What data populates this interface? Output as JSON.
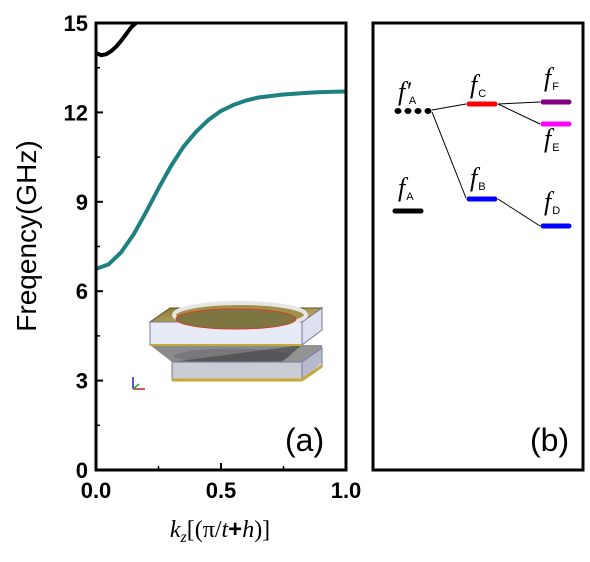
{
  "chart_data": [
    {
      "panel_label": "(a)",
      "type": "line",
      "xlabel": {
        "var": "k",
        "sub": "z",
        "rest1": "[(π/",
        "t": "t",
        "plus": "+",
        "h": "h",
        "rest2": ")]"
      },
      "ylabel": "Freqency(GHz)",
      "xlim": [
        0,
        1.0
      ],
      "ylim": [
        0,
        15
      ],
      "x_ticks": [
        "0.0",
        "0.5",
        "1.0"
      ],
      "y_ticks": [
        "0",
        "3",
        "6",
        "9",
        "12",
        "15"
      ],
      "grid": false,
      "series": [
        {
          "color": "#1f8080",
          "x": [
            0.0,
            0.05,
            0.1,
            0.15,
            0.2,
            0.25,
            0.3,
            0.35,
            0.4,
            0.45,
            0.5,
            0.55,
            0.6,
            0.65,
            0.7,
            0.75,
            0.8,
            0.85,
            0.9,
            0.95,
            1.0
          ],
          "y": [
            6.75,
            6.9,
            7.3,
            7.9,
            8.65,
            9.45,
            10.2,
            10.85,
            11.35,
            11.75,
            12.05,
            12.25,
            12.4,
            12.5,
            12.55,
            12.6,
            12.63,
            12.66,
            12.68,
            12.69,
            12.7
          ]
        },
        {
          "color": "#000000",
          "x": [
            0.0,
            0.02,
            0.04,
            0.06,
            0.08,
            0.1,
            0.12,
            0.14,
            0.16
          ],
          "y": [
            14.0,
            13.92,
            13.95,
            14.05,
            14.2,
            14.4,
            14.62,
            14.85,
            15.0
          ]
        }
      ]
    },
    {
      "panel_label": "(b)",
      "type": "level-diagram",
      "levels": [
        {
          "name": "f′A",
          "label": "f′",
          "sub": "A",
          "color": "#000000",
          "dashed": true
        },
        {
          "name": "fA",
          "label": "f",
          "sub": "A",
          "color": "#000000",
          "dashed": false
        },
        {
          "name": "fC",
          "label": "f",
          "sub": "C",
          "color": "#ff0000",
          "dashed": false
        },
        {
          "name": "fB",
          "label": "f",
          "sub": "B",
          "color": "#0000ff",
          "dashed": false
        },
        {
          "name": "fF",
          "label": "f",
          "sub": "F",
          "color": "#800080",
          "dashed": false
        },
        {
          "name": "fE",
          "label": "f",
          "sub": "E",
          "color": "#ff00ff",
          "dashed": false
        },
        {
          "name": "fD",
          "label": "f",
          "sub": "D",
          "color": "#0000ff",
          "dashed": false
        }
      ],
      "connections": [
        [
          "f′A",
          "fC"
        ],
        [
          "f′A",
          "fB"
        ],
        [
          "fC",
          "fF"
        ],
        [
          "fC",
          "fE"
        ],
        [
          "fB",
          "fD"
        ]
      ]
    }
  ]
}
